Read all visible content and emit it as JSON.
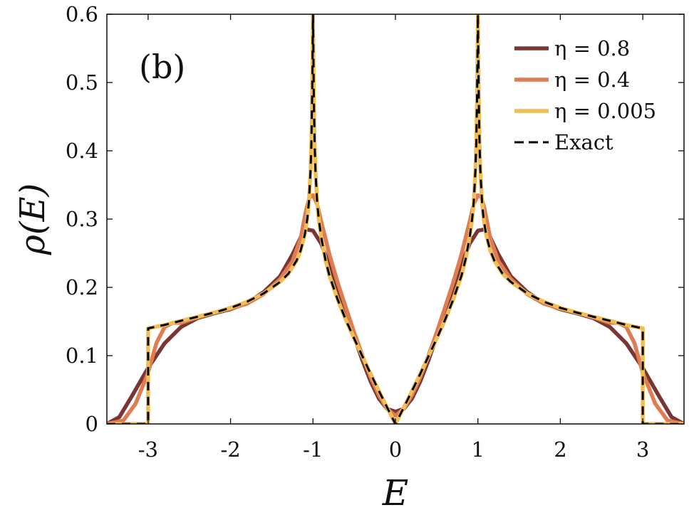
{
  "chart_data": {
    "type": "line",
    "panel_label": "(b)",
    "xlabel": "E",
    "ylabel": "ρ(E)",
    "xlim": [
      -3.5,
      3.5
    ],
    "ylim": [
      0,
      0.6
    ],
    "xticks": [
      -3,
      -2,
      -1,
      0,
      1,
      2,
      3
    ],
    "xtick_labels": [
      "-3",
      "-2",
      "-1",
      "0",
      "1",
      "2",
      "3"
    ],
    "yticks": [
      0,
      0.1,
      0.2,
      0.3,
      0.4,
      0.5,
      0.6
    ],
    "ytick_labels": [
      "0",
      "0.1",
      "0.2",
      "0.3",
      "0.4",
      "0.5",
      "0.6"
    ],
    "grid": false,
    "legend_position": "top-right",
    "series": [
      {
        "name": "η = 0.8",
        "color": "#7a3634",
        "dashed": false,
        "points": [
          [
            -3.5,
            0
          ],
          [
            -3.35,
            0.01
          ],
          [
            -3.2,
            0.04
          ],
          [
            -3.0,
            0.082
          ],
          [
            -2.8,
            0.118
          ],
          [
            -2.6,
            0.142
          ],
          [
            -2.4,
            0.155
          ],
          [
            -2.2,
            0.162
          ],
          [
            -2.0,
            0.168
          ],
          [
            -1.8,
            0.177
          ],
          [
            -1.6,
            0.193
          ],
          [
            -1.4,
            0.216
          ],
          [
            -1.25,
            0.248
          ],
          [
            -1.15,
            0.273
          ],
          [
            -1.08,
            0.285
          ],
          [
            -1.0,
            0.283
          ],
          [
            -0.9,
            0.264
          ],
          [
            -0.8,
            0.232
          ],
          [
            -0.7,
            0.198
          ],
          [
            -0.6,
            0.163
          ],
          [
            -0.5,
            0.128
          ],
          [
            -0.4,
            0.093
          ],
          [
            -0.3,
            0.062
          ],
          [
            -0.2,
            0.037
          ],
          [
            -0.1,
            0.022
          ],
          [
            0,
            0.018
          ],
          [
            0.1,
            0.022
          ],
          [
            0.2,
            0.037
          ],
          [
            0.3,
            0.062
          ],
          [
            0.4,
            0.093
          ],
          [
            0.5,
            0.128
          ],
          [
            0.6,
            0.163
          ],
          [
            0.7,
            0.198
          ],
          [
            0.8,
            0.232
          ],
          [
            0.9,
            0.264
          ],
          [
            1.0,
            0.283
          ],
          [
            1.08,
            0.285
          ],
          [
            1.15,
            0.273
          ],
          [
            1.25,
            0.248
          ],
          [
            1.4,
            0.216
          ],
          [
            1.6,
            0.193
          ],
          [
            1.8,
            0.177
          ],
          [
            2.0,
            0.168
          ],
          [
            2.2,
            0.162
          ],
          [
            2.4,
            0.155
          ],
          [
            2.6,
            0.142
          ],
          [
            2.8,
            0.118
          ],
          [
            3.0,
            0.082
          ],
          [
            3.2,
            0.04
          ],
          [
            3.35,
            0.01
          ],
          [
            3.5,
            0
          ]
        ]
      },
      {
        "name": "η = 0.4",
        "color": "#e07c51",
        "dashed": false,
        "points": [
          [
            -3.5,
            0
          ],
          [
            -3.3,
            0.005
          ],
          [
            -3.15,
            0.03
          ],
          [
            -3.0,
            0.075
          ],
          [
            -2.9,
            0.118
          ],
          [
            -2.8,
            0.142
          ],
          [
            -2.7,
            0.148
          ],
          [
            -2.6,
            0.148
          ],
          [
            -2.4,
            0.156
          ],
          [
            -2.2,
            0.163
          ],
          [
            -2.0,
            0.169
          ],
          [
            -1.8,
            0.176
          ],
          [
            -1.6,
            0.19
          ],
          [
            -1.4,
            0.212
          ],
          [
            -1.25,
            0.238
          ],
          [
            -1.15,
            0.272
          ],
          [
            -1.08,
            0.315
          ],
          [
            -1.04,
            0.332
          ],
          [
            -1.0,
            0.335
          ],
          [
            -0.95,
            0.322
          ],
          [
            -0.9,
            0.296
          ],
          [
            -0.8,
            0.248
          ],
          [
            -0.7,
            0.207
          ],
          [
            -0.6,
            0.17
          ],
          [
            -0.5,
            0.134
          ],
          [
            -0.4,
            0.1
          ],
          [
            -0.3,
            0.068
          ],
          [
            -0.2,
            0.042
          ],
          [
            -0.1,
            0.022
          ],
          [
            0,
            0.012
          ],
          [
            0.1,
            0.022
          ],
          [
            0.2,
            0.042
          ],
          [
            0.3,
            0.068
          ],
          [
            0.4,
            0.1
          ],
          [
            0.5,
            0.134
          ],
          [
            0.6,
            0.17
          ],
          [
            0.7,
            0.207
          ],
          [
            0.8,
            0.248
          ],
          [
            0.9,
            0.296
          ],
          [
            0.95,
            0.322
          ],
          [
            1.0,
            0.335
          ],
          [
            1.04,
            0.332
          ],
          [
            1.08,
            0.315
          ],
          [
            1.15,
            0.272
          ],
          [
            1.25,
            0.238
          ],
          [
            1.4,
            0.212
          ],
          [
            1.6,
            0.19
          ],
          [
            1.8,
            0.176
          ],
          [
            2.0,
            0.169
          ],
          [
            2.2,
            0.163
          ],
          [
            2.4,
            0.156
          ],
          [
            2.6,
            0.148
          ],
          [
            2.7,
            0.148
          ],
          [
            2.8,
            0.142
          ],
          [
            2.9,
            0.118
          ],
          [
            3.0,
            0.075
          ],
          [
            3.15,
            0.03
          ],
          [
            3.3,
            0.005
          ],
          [
            3.5,
            0
          ]
        ]
      },
      {
        "name": "η = 0.005",
        "color": "#f0be55",
        "dashed": false,
        "points": [
          [
            -3.5,
            0
          ],
          [
            -3.0,
            0
          ],
          [
            -3.0,
            0.14
          ],
          [
            -2.8,
            0.145
          ],
          [
            -2.6,
            0.151
          ],
          [
            -2.4,
            0.157
          ],
          [
            -2.2,
            0.163
          ],
          [
            -2.0,
            0.17
          ],
          [
            -1.8,
            0.179
          ],
          [
            -1.6,
            0.191
          ],
          [
            -1.4,
            0.208
          ],
          [
            -1.3,
            0.22
          ],
          [
            -1.2,
            0.239
          ],
          [
            -1.15,
            0.254
          ],
          [
            -1.1,
            0.277
          ],
          [
            -1.07,
            0.3
          ],
          [
            -1.05,
            0.325
          ],
          [
            -1.03,
            0.37
          ],
          [
            -1.02,
            0.41
          ],
          [
            -1.01,
            0.48
          ],
          [
            -1.0,
            0.6
          ],
          [
            -0.99,
            0.48
          ],
          [
            -0.98,
            0.41
          ],
          [
            -0.97,
            0.37
          ],
          [
            -0.95,
            0.325
          ],
          [
            -0.93,
            0.3
          ],
          [
            -0.9,
            0.273
          ],
          [
            -0.85,
            0.241
          ],
          [
            -0.8,
            0.217
          ],
          [
            -0.7,
            0.182
          ],
          [
            -0.6,
            0.152
          ],
          [
            -0.5,
            0.125
          ],
          [
            -0.4,
            0.099
          ],
          [
            -0.3,
            0.073
          ],
          [
            -0.2,
            0.048
          ],
          [
            -0.1,
            0.024
          ],
          [
            0,
            0
          ],
          [
            0.1,
            0.024
          ],
          [
            0.2,
            0.048
          ],
          [
            0.3,
            0.073
          ],
          [
            0.4,
            0.099
          ],
          [
            0.5,
            0.125
          ],
          [
            0.6,
            0.152
          ],
          [
            0.7,
            0.182
          ],
          [
            0.8,
            0.217
          ],
          [
            0.85,
            0.241
          ],
          [
            0.9,
            0.273
          ],
          [
            0.93,
            0.3
          ],
          [
            0.95,
            0.325
          ],
          [
            0.97,
            0.37
          ],
          [
            0.98,
            0.41
          ],
          [
            0.99,
            0.48
          ],
          [
            1.0,
            0.6
          ],
          [
            1.01,
            0.48
          ],
          [
            1.02,
            0.41
          ],
          [
            1.03,
            0.37
          ],
          [
            1.05,
            0.325
          ],
          [
            1.07,
            0.3
          ],
          [
            1.1,
            0.277
          ],
          [
            1.15,
            0.254
          ],
          [
            1.2,
            0.239
          ],
          [
            1.3,
            0.22
          ],
          [
            1.4,
            0.208
          ],
          [
            1.6,
            0.191
          ],
          [
            1.8,
            0.179
          ],
          [
            2.0,
            0.17
          ],
          [
            2.2,
            0.163
          ],
          [
            2.4,
            0.157
          ],
          [
            2.6,
            0.151
          ],
          [
            2.8,
            0.145
          ],
          [
            3.0,
            0.14
          ],
          [
            3.0,
            0
          ],
          [
            3.5,
            0
          ]
        ]
      },
      {
        "name": "Exact",
        "color": "#000000",
        "dashed": true,
        "points": [
          [
            -3.5,
            0
          ],
          [
            -3.0,
            0
          ],
          [
            -3.0,
            0.14
          ],
          [
            -2.8,
            0.145
          ],
          [
            -2.6,
            0.151
          ],
          [
            -2.4,
            0.157
          ],
          [
            -2.2,
            0.163
          ],
          [
            -2.0,
            0.17
          ],
          [
            -1.8,
            0.179
          ],
          [
            -1.6,
            0.191
          ],
          [
            -1.4,
            0.208
          ],
          [
            -1.3,
            0.22
          ],
          [
            -1.2,
            0.239
          ],
          [
            -1.15,
            0.254
          ],
          [
            -1.1,
            0.277
          ],
          [
            -1.07,
            0.3
          ],
          [
            -1.05,
            0.325
          ],
          [
            -1.03,
            0.37
          ],
          [
            -1.02,
            0.41
          ],
          [
            -1.01,
            0.48
          ],
          [
            -1.0,
            0.6
          ],
          [
            -0.99,
            0.48
          ],
          [
            -0.98,
            0.41
          ],
          [
            -0.97,
            0.37
          ],
          [
            -0.95,
            0.325
          ],
          [
            -0.93,
            0.3
          ],
          [
            -0.9,
            0.273
          ],
          [
            -0.85,
            0.241
          ],
          [
            -0.8,
            0.217
          ],
          [
            -0.7,
            0.182
          ],
          [
            -0.6,
            0.152
          ],
          [
            -0.5,
            0.125
          ],
          [
            -0.4,
            0.099
          ],
          [
            -0.3,
            0.073
          ],
          [
            -0.2,
            0.048
          ],
          [
            -0.1,
            0.024
          ],
          [
            0,
            0
          ],
          [
            0.1,
            0.024
          ],
          [
            0.2,
            0.048
          ],
          [
            0.3,
            0.073
          ],
          [
            0.4,
            0.099
          ],
          [
            0.5,
            0.125
          ],
          [
            0.6,
            0.152
          ],
          [
            0.7,
            0.182
          ],
          [
            0.8,
            0.217
          ],
          [
            0.85,
            0.241
          ],
          [
            0.9,
            0.273
          ],
          [
            0.93,
            0.3
          ],
          [
            0.95,
            0.325
          ],
          [
            0.97,
            0.37
          ],
          [
            0.98,
            0.41
          ],
          [
            0.99,
            0.48
          ],
          [
            1.0,
            0.6
          ],
          [
            1.01,
            0.48
          ],
          [
            1.02,
            0.41
          ],
          [
            1.03,
            0.37
          ],
          [
            1.05,
            0.325
          ],
          [
            1.07,
            0.3
          ],
          [
            1.1,
            0.277
          ],
          [
            1.15,
            0.254
          ],
          [
            1.2,
            0.239
          ],
          [
            1.3,
            0.22
          ],
          [
            1.4,
            0.208
          ],
          [
            1.6,
            0.191
          ],
          [
            1.8,
            0.179
          ],
          [
            2.0,
            0.17
          ],
          [
            2.2,
            0.163
          ],
          [
            2.4,
            0.157
          ],
          [
            2.6,
            0.151
          ],
          [
            2.8,
            0.145
          ],
          [
            3.0,
            0.14
          ],
          [
            3.0,
            0
          ],
          [
            3.5,
            0
          ]
        ]
      }
    ]
  }
}
